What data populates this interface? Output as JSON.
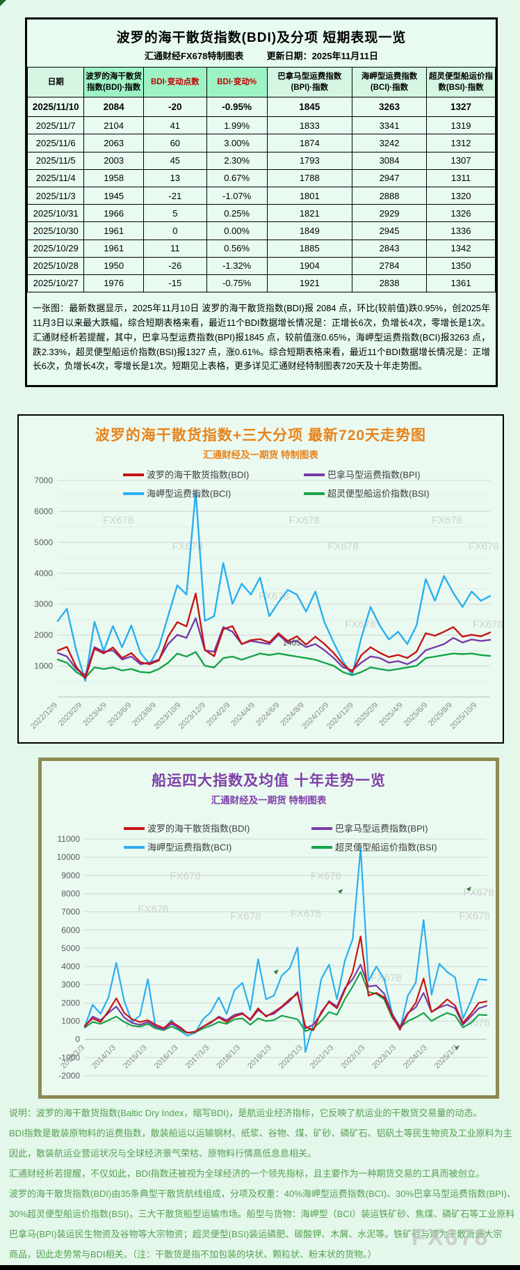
{
  "table_section": {
    "title": "波罗的海干散货指数(BDI)及分项  短期表现一览",
    "subtitle_source": "汇通财经FX678特制图表",
    "subtitle_update": "更新日期：2025年11月11日",
    "columns": [
      {
        "label": "日期",
        "cls": ""
      },
      {
        "label": "波罗的海干散货指数(BDI)·指数",
        "cls": "mint"
      },
      {
        "label": "BDI·变动点数",
        "cls": "mint red"
      },
      {
        "label": "BDI·变动%",
        "cls": "mint red"
      },
      {
        "label": "巴拿马型运费指数(BPI)·指数",
        "cls": ""
      },
      {
        "label": "海岬型运费指数(BCI)·指数",
        "cls": ""
      },
      {
        "label": "超灵便型船运价指数(BSI)·指数",
        "cls": ""
      }
    ],
    "rows": [
      [
        "2025/11/10",
        "2084",
        "-20",
        "-0.95%",
        "1845",
        "3263",
        "1327"
      ],
      [
        "2025/11/7",
        "2104",
        "41",
        "1.99%",
        "1833",
        "3341",
        "1319"
      ],
      [
        "2025/11/6",
        "2063",
        "60",
        "3.00%",
        "1874",
        "3242",
        "1312"
      ],
      [
        "2025/11/5",
        "2003",
        "45",
        "2.30%",
        "1793",
        "3084",
        "1307"
      ],
      [
        "2025/11/4",
        "1958",
        "13",
        "0.67%",
        "1788",
        "2947",
        "1311"
      ],
      [
        "2025/11/3",
        "1945",
        "-21",
        "-1.07%",
        "1801",
        "2888",
        "1320"
      ],
      [
        "2025/10/31",
        "1966",
        "5",
        "0.25%",
        "1821",
        "2929",
        "1326"
      ],
      [
        "2025/10/30",
        "1961",
        "0",
        "0.00%",
        "1849",
        "2945",
        "1336"
      ],
      [
        "2025/10/29",
        "1961",
        "11",
        "0.56%",
        "1885",
        "2843",
        "1342"
      ],
      [
        "2025/10/28",
        "1950",
        "-26",
        "-1.32%",
        "1904",
        "2784",
        "1350"
      ],
      [
        "2025/10/27",
        "1976",
        "-15",
        "-0.75%",
        "1921",
        "2838",
        "1361"
      ]
    ],
    "summary": "一张图：最新数据显示，2025年11月10日 波罗的海干散货指数(BDI)报 2084 点，环比(较前值)跌0.95%，创2025年11月3日以来最大跌幅，综合短期表格来看，最近11个BDI数据增长情况是：正增长6次，负增长4次，零增长是1次。汇通财经析若提醒，其中，巴拿马型运费指数(BPI)报1845 点，较前值涨0.65%，海岬型运费指数(BCI)报3263 点，跌2.33%，超灵便型船运价指数(BSI)报1327 点，涨0.61%。综合短期表格来看，最近11个BDI数据增长情况是：正增长6次，负增长4次，零增长是1次。短期见上表格，更多详见汇通财经特制图表720天及十年走势图。"
  },
  "watermark": "FX678",
  "colors": {
    "bdi": "#c81414",
    "bpi": "#7a3ba8",
    "bci": "#2aaef0",
    "bsi": "#17a349",
    "chart1_title": "#e8831a",
    "chart2_title": "#8040a8",
    "header_red": "#c00000",
    "footer_green": "#55a052"
  },
  "chart_data": [
    {
      "type": "line",
      "title": "波罗的海干散货指数+三大分项  最新720天走势图",
      "subtitle": "汇通财经及一期货 特制图表",
      "ylim": [
        0,
        7000
      ],
      "y_ticks": [
        7000,
        6000,
        5000,
        4000,
        3000,
        2000,
        1000
      ],
      "y_minor": 500,
      "grid": true,
      "legend_position": "top-inside",
      "x_labels": [
        "2022/12/9",
        "2023/2/9",
        "2023/4/9",
        "2023/6/9",
        "2023/8/9",
        "2023/10/9",
        "2023/12/9",
        "2024/2/9",
        "2024/4/9",
        "2024/6/9",
        "2024/8/9",
        "2024/10/9",
        "2024/12/9",
        "2025/2/9",
        "2025/4/9",
        "2025/6/9",
        "2025/8/9",
        "2025/10/9"
      ],
      "x_label_span": 0.97,
      "legend": [
        {
          "label": "波罗的海干散货指数(BDI)",
          "color": "#c81414",
          "row": 0,
          "col": 0
        },
        {
          "label": "巴拿马型运费指数(BPI)",
          "color": "#7a3ba8",
          "row": 0,
          "col": 1
        },
        {
          "label": "海岬型运费指数(BCI)",
          "color": "#2aaef0",
          "row": 1,
          "col": 0
        },
        {
          "label": "超灵便型船运价指数(BSI)",
          "color": "#17a349",
          "row": 1,
          "col": 1
        }
      ],
      "series": [
        {
          "id": "BCI",
          "name": "海岬型运费指数(BCI)",
          "color": "#2aaef0",
          "values": [
            2450,
            2852,
            1520,
            521,
            2430,
            1490,
            2290,
            1610,
            2310,
            1420,
            1060,
            1610,
            2610,
            3610,
            3310,
            6640,
            2460,
            2610,
            4330,
            3010,
            3660,
            3310,
            3860,
            2610,
            3060,
            3460,
            3310,
            2760,
            3410,
            2410,
            1760,
            1160,
            710,
            1910,
            2910,
            2310,
            1860,
            2110,
            1710,
            2310,
            3810,
            3110,
            3910,
            3360,
            2910,
            3410,
            3110,
            3263
          ]
        },
        {
          "id": "BSI",
          "name": "超灵便型船运价指数(BSI)",
          "color": "#17a349",
          "values": [
            1210,
            1110,
            810,
            625,
            955,
            905,
            955,
            855,
            905,
            805,
            785,
            905,
            1105,
            1405,
            1305,
            1455,
            1005,
            955,
            1255,
            1305,
            1205,
            1305,
            1405,
            1355,
            1405,
            1355,
            1305,
            1255,
            1205,
            1105,
            1005,
            805,
            705,
            805,
            955,
            905,
            855,
            905,
            955,
            1005,
            1255,
            1305,
            1355,
            1405,
            1385,
            1405,
            1355,
            1327
          ]
        },
        {
          "id": "BPI",
          "name": "巴拿马型运费指数(BPI)",
          "color": "#7a3ba8",
          "values": [
            1420,
            1310,
            910,
            705,
            1610,
            1460,
            1510,
            1210,
            1310,
            1060,
            1110,
            1210,
            1710,
            2010,
            1910,
            2550,
            1510,
            1460,
            2260,
            2110,
            1710,
            1810,
            1760,
            1710,
            2010,
            1760,
            1810,
            1610,
            1710,
            1510,
            1260,
            960,
            860,
            1110,
            1310,
            1260,
            1110,
            1160,
            1060,
            1210,
            1510,
            1610,
            1710,
            1910,
            1760,
            1860,
            1810,
            1845
          ]
        },
        {
          "id": "BDI",
          "name": "波罗的海干散货指数(BDI)",
          "color": "#c81414",
          "values": [
            1500,
            1620,
            980,
            605,
            1560,
            1410,
            1600,
            1260,
            1420,
            1120,
            1060,
            1180,
            1950,
            2420,
            2280,
            3346,
            1520,
            1320,
            2190,
            2290,
            1710,
            1840,
            1870,
            1760,
            2060,
            1810,
            1960,
            1690,
            1950,
            1710,
            1420,
            1060,
            810,
            1350,
            1610,
            1430,
            1290,
            1360,
            1260,
            1460,
            2060,
            1980,
            2110,
            2260,
            1950,
            2010,
            1960,
            2084
          ]
        }
      ],
      "annotations": [
        {
          "xf": 0.52,
          "v": 1660,
          "text": "1405"
        }
      ],
      "watermarks": [
        [
          0.14,
          0.2
        ],
        [
          0.3,
          0.32
        ],
        [
          0.5,
          0.55
        ],
        [
          0.57,
          0.2
        ],
        [
          0.66,
          0.32
        ],
        [
          0.9,
          0.2
        ],
        [
          0.985,
          0.32
        ],
        [
          0.7,
          0.68
        ],
        [
          0.995,
          0.68
        ]
      ]
    },
    {
      "type": "line",
      "title": "船运四大指数及均值 十年走势一览",
      "subtitle": "汇通财经及一期货 特制图表",
      "ylim": [
        -2000,
        11000
      ],
      "y_ticks": [
        11000,
        10000,
        9000,
        8000,
        7000,
        6000,
        5000,
        4000,
        3000,
        2000,
        1000,
        0,
        -1000,
        -2000
      ],
      "y_minor": 0,
      "grid": true,
      "legend_position": "top-inside",
      "x_labels": [
        "2013/1/3",
        "2014/1/3",
        "2015/1/3",
        "2016/1/3",
        "2017/1/3",
        "2018/1/3",
        "2019/1/3",
        "2020/1/3",
        "2021/1/3",
        "2022/1/3",
        "2023/1/3",
        "2024/1/3",
        "2025/1/3"
      ],
      "x_label_span": 0.93,
      "legend": [
        {
          "label": "波罗的海干散货指数(BDI)",
          "color": "#c81414",
          "row": 0,
          "col": 0
        },
        {
          "label": "巴拿马型运费指数(BPI)",
          "color": "#7a3ba8",
          "row": 0,
          "col": 1
        },
        {
          "label": "海岬型运费指数(BCI)",
          "color": "#2aaef0",
          "row": 1,
          "col": 0
        },
        {
          "label": "超灵便型船运价指数(BSI)",
          "color": "#17a349",
          "row": 1,
          "col": 1
        }
      ],
      "series": [
        {
          "id": "BCI",
          "name": "海岬型运费指数(BCI)",
          "color": "#2aaef0",
          "values": [
            705,
            1900,
            1400,
            2300,
            4200,
            2100,
            950,
            1300,
            3300,
            620,
            550,
            1050,
            500,
            200,
            350,
            1100,
            1500,
            2300,
            1400,
            2700,
            3100,
            1600,
            4400,
            2200,
            2400,
            3500,
            3900,
            5050,
            -700,
            850,
            3300,
            4100,
            2200,
            4300,
            5500,
            10500,
            3200,
            4000,
            3300,
            1450,
            520,
            2400,
            3100,
            6550,
            2450,
            4150,
            3700,
            3400,
            1150,
            2100,
            3300,
            3263
          ]
        },
        {
          "id": "BSI",
          "name": "超灵便型船运价指数(BSI)",
          "color": "#17a349",
          "values": [
            650,
            950,
            850,
            1050,
            1250,
            950,
            750,
            700,
            850,
            600,
            500,
            700,
            500,
            350,
            380,
            600,
            750,
            950,
            850,
            1100,
            1150,
            800,
            1150,
            1000,
            1050,
            1300,
            1200,
            1100,
            450,
            600,
            1000,
            1500,
            1350,
            2200,
            2900,
            3700,
            2600,
            2500,
            2200,
            1200,
            650,
            1000,
            1200,
            1450,
            1000,
            1250,
            1450,
            1300,
            650,
            900,
            1350,
            1327
          ]
        },
        {
          "id": "BPI",
          "name": "巴拿马型运费指数(BPI)",
          "color": "#7a3ba8",
          "values": [
            700,
            1250,
            1050,
            1450,
            1800,
            1200,
            900,
            800,
            950,
            700,
            550,
            850,
            600,
            380,
            400,
            700,
            900,
            1250,
            1050,
            1350,
            1450,
            1050,
            1600,
            1300,
            1400,
            1750,
            2100,
            2600,
            600,
            800,
            1400,
            2100,
            1800,
            2800,
            3300,
            4100,
            2900,
            2950,
            2500,
            1400,
            700,
            1450,
            1750,
            2550,
            1500,
            1750,
            1900,
            1700,
            800,
            1250,
            1700,
            1845
          ]
        },
        {
          "id": "BDI",
          "name": "波罗的海干散货指数(BDI)",
          "color": "#c81414",
          "values": [
            750,
            1150,
            950,
            1550,
            2250,
            1450,
            1100,
            950,
            1050,
            800,
            620,
            950,
            700,
            350,
            420,
            700,
            950,
            1200,
            950,
            1250,
            1400,
            1100,
            1700,
            1250,
            1500,
            1800,
            2200,
            2500,
            700,
            500,
            1500,
            2050,
            1700,
            2700,
            3700,
            5650,
            2400,
            2550,
            2300,
            1300,
            530,
            1400,
            2000,
            3340,
            1500,
            1800,
            2200,
            1850,
            900,
            1400,
            2000,
            2084
          ]
        }
      ],
      "annotations": [],
      "markers": [
        [
          0.63,
          0.22
        ],
        [
          0.95,
          0.21
        ],
        [
          0.47,
          0.56
        ],
        [
          0.92,
          0.88
        ]
      ],
      "watermarks": [
        [
          0.25,
          0.17
        ],
        [
          0.6,
          0.17
        ],
        [
          0.98,
          0.24
        ],
        [
          0.17,
          0.31
        ],
        [
          0.4,
          0.34
        ],
        [
          0.55,
          0.33
        ],
        [
          0.97,
          0.34
        ],
        [
          0.75,
          0.6
        ],
        [
          0.14,
          0.8
        ],
        [
          0.97,
          0.79
        ]
      ]
    }
  ],
  "footer": {
    "lines": [
      "说明：波罗的海干散货指数(Baltic Dry Index，缩写BDI)，是航运业经济指标，它反映了航运业的干散货交易量的动态。",
      "BDI指数是散装原物料的运费指数，散装船运以运输钢材、纸浆、谷物、煤、矿砂、磷矿石、铝矾土等民生物资及工业原料为主",
      "因此，散装航运业营运状况与全球经济景气荣枯、原物料行情高低息息相关。",
      "汇通财经析若提醒，不仅如此，BDI指数还被视为全球经济的一个领先指标，且主要作为一种期货交易的工具而被创立。",
      "波罗的海干散货指数(BDI)由35条典型干散货航线组成，分项及权重：40%海岬型运费指数(BCI)、30%巴拿马型运费指数(BPI)、",
      "30%超灵便型船运价指数(BSI)，三大干散货船型运输市场。船型与货物：海岬型（BCI）装运铁矿砂、焦煤、磷矿石等工业原料",
      "巴拿马(BPI)装运民生物资及谷物等大宗物资；超灵便型(BSI)装运磷肥、碳酸钾、木屑、水泥等。铁矿砂与煤为干散货最大宗",
      "商品，因此走势常与BDI相关。（注：干散货是指不加包装的块状、颗粒状、粉末状的货物。）"
    ]
  }
}
